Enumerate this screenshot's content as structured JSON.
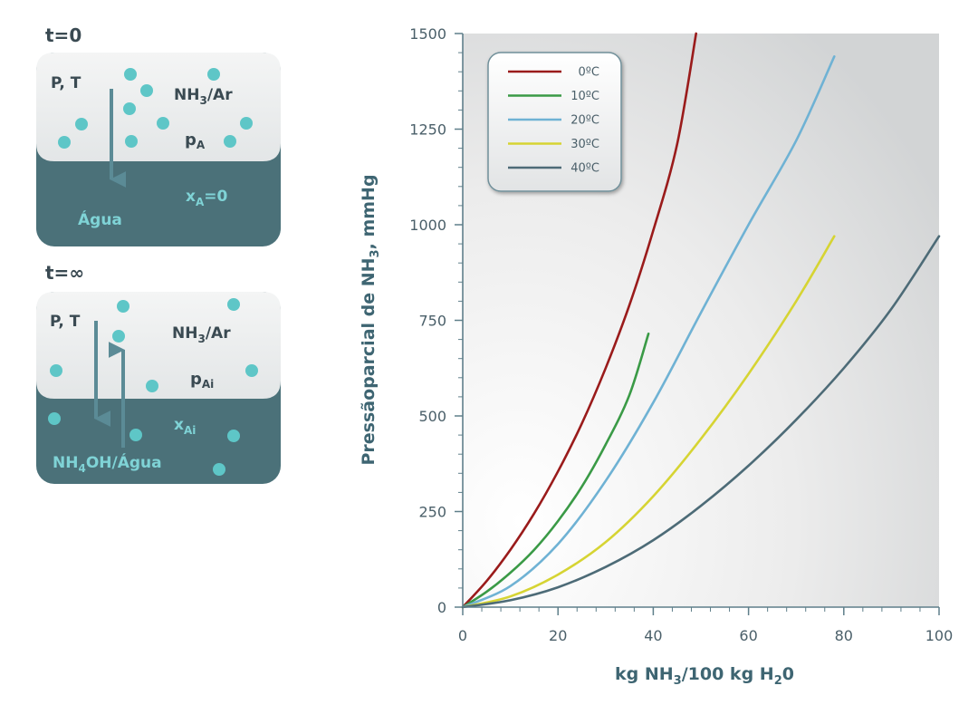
{
  "colors": {
    "panel_text": "#3a4a52",
    "water": "#4b7179",
    "water_text": "#7fd3d6",
    "particle": "#5ec6c7",
    "arrow": "#5b8b96",
    "axis": "#5f7f8a",
    "axis_text": "#4a5f69",
    "label_text": "#3e6572"
  },
  "diagram": {
    "panels": [
      {
        "time_label": "t=0",
        "pt_label": "P, T",
        "gas_label": {
          "main": "NH",
          "sub": "3",
          "rest": "/Ar"
        },
        "pressure_label": {
          "main": "p",
          "sub": "A"
        },
        "liquid_fraction": {
          "main": "x",
          "sub": "A",
          "rest": "=0"
        },
        "liquid_label": "Água"
      },
      {
        "time_label": "t=∞",
        "pt_label": "P, T",
        "gas_label": {
          "main": "NH",
          "sub": "3",
          "rest": "/Ar"
        },
        "pressure_label": {
          "main": "p",
          "sub": "Ai"
        },
        "liquid_fraction": {
          "main": "x",
          "sub": "Ai",
          "rest": ""
        },
        "liquid_label": {
          "pre": "NH",
          "sub": "4",
          "rest": "OH/Água"
        }
      }
    ]
  },
  "chart_data": {
    "type": "line",
    "title": "",
    "xlabel": {
      "pre": "kg NH",
      "sub1": "3",
      "mid": "/100 kg H",
      "sub2": "2",
      "post": "0"
    },
    "ylabel": {
      "pre": "Pressãoparcial de NH",
      "sub": "3",
      "post": ", mmHg"
    },
    "xlim": [
      0,
      100
    ],
    "ylim": [
      0,
      1500
    ],
    "xticks": [
      0,
      20,
      40,
      60,
      80,
      100
    ],
    "yticks": [
      0,
      250,
      500,
      750,
      1000,
      1250,
      1500
    ],
    "grid": false,
    "legend_position": "top-left",
    "series": [
      {
        "name": "0ºC",
        "color": "#9a1b1b",
        "x": [
          0,
          5,
          10,
          15,
          20,
          25,
          30,
          35,
          40,
          45,
          49
        ],
        "y": [
          0,
          68,
          150,
          245,
          355,
          480,
          625,
          790,
          985,
          1210,
          1500
        ]
      },
      {
        "name": "10ºC",
        "color": "#3a9a46",
        "x": [
          0,
          5,
          10,
          15,
          20,
          25,
          30,
          35,
          39
        ],
        "y": [
          0,
          40,
          90,
          150,
          225,
          315,
          425,
          555,
          715
        ]
      },
      {
        "name": "20ºC",
        "color": "#6fb2d4",
        "x": [
          0,
          10,
          20,
          30,
          40,
          50,
          60,
          70,
          78
        ],
        "y": [
          0,
          55,
          165,
          330,
          535,
          770,
          1000,
          1220,
          1440
        ]
      },
      {
        "name": "30ºC",
        "color": "#d6d433",
        "x": [
          0,
          10,
          20,
          30,
          40,
          50,
          60,
          70,
          78
        ],
        "y": [
          0,
          28,
          85,
          170,
          290,
          440,
          610,
          800,
          970
        ]
      },
      {
        "name": "40ºC",
        "color": "#4d6b77",
        "x": [
          0,
          10,
          20,
          30,
          40,
          50,
          60,
          70,
          80,
          90,
          100
        ],
        "y": [
          0,
          18,
          52,
          105,
          175,
          265,
          370,
          490,
          625,
          780,
          970
        ]
      }
    ]
  }
}
